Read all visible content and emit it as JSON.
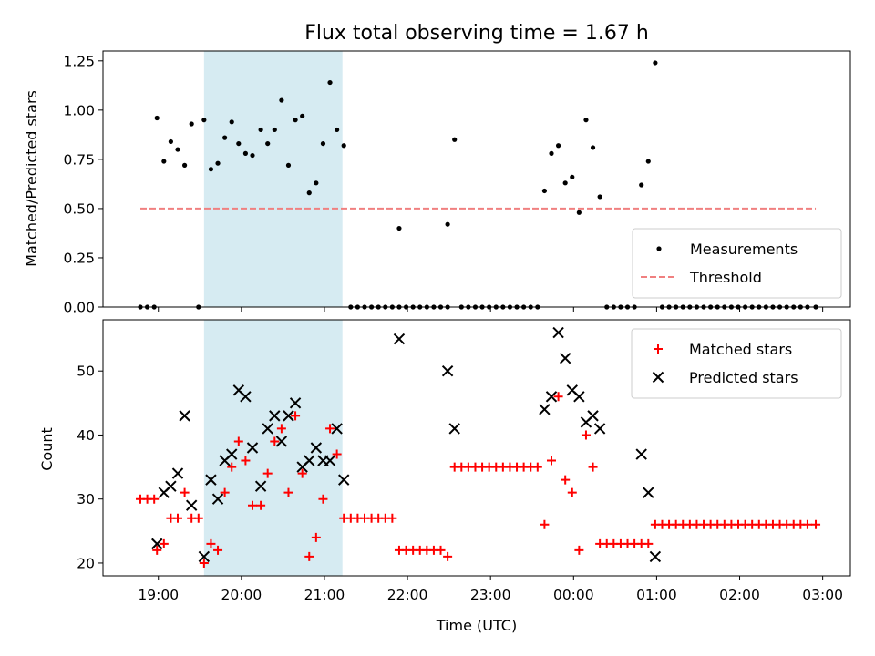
{
  "chart_data": [
    {
      "type": "scatter",
      "title": "Flux total observing time = 1.67 h",
      "ylabel": "Matched/Predicted stars",
      "ylim": [
        0,
        1.3
      ],
      "xlim": [
        "18:20",
        "03:20"
      ],
      "xticks": [
        "19:00",
        "20:00",
        "21:00",
        "22:00",
        "23:00",
        "00:00",
        "01:00",
        "02:00",
        "03:00"
      ],
      "yticks": [
        "0.00",
        "0.25",
        "0.50",
        "0.75",
        "1.00",
        "1.25"
      ],
      "legend_position": "lower-right",
      "shaded_interval": {
        "start": "19:33",
        "end": "21:13",
        "color": "#add8e6"
      },
      "threshold": {
        "name": "Threshold",
        "value": 0.5,
        "x_start": "18:47",
        "x_end": "02:55",
        "color": "#f08080",
        "style": "dashed"
      },
      "series": [
        {
          "name": "Measurements",
          "color": "#000000",
          "marker": "dot",
          "points": [
            [
              "18:47",
              0
            ],
            [
              "18:52",
              0
            ],
            [
              "18:57",
              0
            ],
            [
              "18:59",
              0.96
            ],
            [
              "19:04",
              0.74
            ],
            [
              "19:09",
              0.84
            ],
            [
              "19:14",
              0.8
            ],
            [
              "19:19",
              0.72
            ],
            [
              "19:24",
              0.93
            ],
            [
              "19:29",
              0
            ],
            [
              "19:33",
              0.95
            ],
            [
              "19:38",
              0.7
            ],
            [
              "19:43",
              0.73
            ],
            [
              "19:48",
              0.86
            ],
            [
              "19:53",
              0.94
            ],
            [
              "19:58",
              0.83
            ],
            [
              "20:03",
              0.78
            ],
            [
              "20:08",
              0.77
            ],
            [
              "20:14",
              0.9
            ],
            [
              "20:19",
              0.83
            ],
            [
              "20:24",
              0.9
            ],
            [
              "20:29",
              1.05
            ],
            [
              "20:34",
              0.72
            ],
            [
              "20:39",
              0.95
            ],
            [
              "20:44",
              0.97
            ],
            [
              "20:49",
              0.58
            ],
            [
              "20:54",
              0.63
            ],
            [
              "20:59",
              0.83
            ],
            [
              "21:04",
              1.14
            ],
            [
              "21:09",
              0.9
            ],
            [
              "21:14",
              0.82
            ],
            [
              "21:19",
              0
            ],
            [
              "21:24",
              0
            ],
            [
              "21:29",
              0
            ],
            [
              "21:34",
              0
            ],
            [
              "21:39",
              0
            ],
            [
              "21:44",
              0
            ],
            [
              "21:49",
              0
            ],
            [
              "21:54",
              0
            ],
            [
              "21:54",
              0.4
            ],
            [
              "21:59",
              0
            ],
            [
              "22:04",
              0
            ],
            [
              "22:09",
              0
            ],
            [
              "22:14",
              0
            ],
            [
              "22:19",
              0
            ],
            [
              "22:24",
              0
            ],
            [
              "22:29",
              0
            ],
            [
              "22:29",
              0.42
            ],
            [
              "22:34",
              0.85
            ],
            [
              "22:39",
              0
            ],
            [
              "22:44",
              0
            ],
            [
              "22:49",
              0
            ],
            [
              "22:54",
              0
            ],
            [
              "22:59",
              0
            ],
            [
              "23:04",
              0
            ],
            [
              "23:09",
              0
            ],
            [
              "23:14",
              0
            ],
            [
              "23:19",
              0
            ],
            [
              "23:24",
              0
            ],
            [
              "23:29",
              0
            ],
            [
              "23:34",
              0
            ],
            [
              "23:39",
              0.59
            ],
            [
              "23:44",
              0.78
            ],
            [
              "23:49",
              0.82
            ],
            [
              "23:54",
              0.63
            ],
            [
              "23:59",
              0.66
            ],
            [
              "00:04",
              0.48
            ],
            [
              "00:09",
              0.95
            ],
            [
              "00:14",
              0.81
            ],
            [
              "00:19",
              0.56
            ],
            [
              "00:24",
              0
            ],
            [
              "00:29",
              0
            ],
            [
              "00:34",
              0
            ],
            [
              "00:39",
              0
            ],
            [
              "00:44",
              0
            ],
            [
              "00:49",
              0.62
            ],
            [
              "00:54",
              0.74
            ],
            [
              "00:59",
              1.24
            ],
            [
              "01:04",
              0
            ],
            [
              "01:09",
              0
            ],
            [
              "01:14",
              0
            ],
            [
              "01:19",
              0
            ],
            [
              "01:24",
              0
            ],
            [
              "01:29",
              0
            ],
            [
              "01:34",
              0
            ],
            [
              "01:39",
              0
            ],
            [
              "01:44",
              0
            ],
            [
              "01:49",
              0
            ],
            [
              "01:54",
              0
            ],
            [
              "01:59",
              0
            ],
            [
              "02:04",
              0
            ],
            [
              "02:09",
              0
            ],
            [
              "02:14",
              0
            ],
            [
              "02:19",
              0
            ],
            [
              "02:24",
              0
            ],
            [
              "02:29",
              0
            ],
            [
              "02:34",
              0
            ],
            [
              "02:39",
              0
            ],
            [
              "02:44",
              0
            ],
            [
              "02:49",
              0
            ],
            [
              "02:55",
              0
            ]
          ]
        }
      ]
    },
    {
      "type": "scatter",
      "xlabel": "Time (UTC)",
      "ylabel": "Count",
      "ylim": [
        18,
        58
      ],
      "xlim": [
        "18:20",
        "03:20"
      ],
      "xticks": [
        "19:00",
        "20:00",
        "21:00",
        "22:00",
        "23:00",
        "00:00",
        "01:00",
        "02:00",
        "03:00"
      ],
      "yticks": [
        "20",
        "30",
        "40",
        "50"
      ],
      "legend_position": "top-right",
      "shaded_interval": {
        "start": "19:33",
        "end": "21:13",
        "color": "#add8e6"
      },
      "series": [
        {
          "name": "Matched stars",
          "color": "#ff0000",
          "marker": "plus",
          "points": [
            [
              "18:47",
              30
            ],
            [
              "18:52",
              30
            ],
            [
              "18:57",
              30
            ],
            [
              "18:59",
              22
            ],
            [
              "19:04",
              23
            ],
            [
              "19:09",
              27
            ],
            [
              "19:14",
              27
            ],
            [
              "19:19",
              31
            ],
            [
              "19:24",
              27
            ],
            [
              "19:29",
              27
            ],
            [
              "19:33",
              20
            ],
            [
              "19:38",
              23
            ],
            [
              "19:43",
              22
            ],
            [
              "19:48",
              31
            ],
            [
              "19:53",
              35
            ],
            [
              "19:58",
              39
            ],
            [
              "20:03",
              36
            ],
            [
              "20:08",
              29
            ],
            [
              "20:14",
              29
            ],
            [
              "20:19",
              34
            ],
            [
              "20:24",
              39
            ],
            [
              "20:29",
              41
            ],
            [
              "20:34",
              31
            ],
            [
              "20:39",
              43
            ],
            [
              "20:44",
              34
            ],
            [
              "20:49",
              21
            ],
            [
              "20:54",
              24
            ],
            [
              "20:59",
              30
            ],
            [
              "21:04",
              41
            ],
            [
              "21:09",
              37
            ],
            [
              "21:14",
              27
            ],
            [
              "21:19",
              27
            ],
            [
              "21:24",
              27
            ],
            [
              "21:29",
              27
            ],
            [
              "21:34",
              27
            ],
            [
              "21:39",
              27
            ],
            [
              "21:44",
              27
            ],
            [
              "21:49",
              27
            ],
            [
              "21:54",
              22
            ],
            [
              "21:59",
              22
            ],
            [
              "22:04",
              22
            ],
            [
              "22:09",
              22
            ],
            [
              "22:14",
              22
            ],
            [
              "22:19",
              22
            ],
            [
              "22:24",
              22
            ],
            [
              "22:29",
              21
            ],
            [
              "22:34",
              35
            ],
            [
              "22:39",
              35
            ],
            [
              "22:44",
              35
            ],
            [
              "22:49",
              35
            ],
            [
              "22:54",
              35
            ],
            [
              "22:59",
              35
            ],
            [
              "23:04",
              35
            ],
            [
              "23:09",
              35
            ],
            [
              "23:14",
              35
            ],
            [
              "23:19",
              35
            ],
            [
              "23:24",
              35
            ],
            [
              "23:29",
              35
            ],
            [
              "23:34",
              35
            ],
            [
              "23:39",
              26
            ],
            [
              "23:44",
              36
            ],
            [
              "23:49",
              46
            ],
            [
              "23:54",
              33
            ],
            [
              "23:59",
              31
            ],
            [
              "00:04",
              22
            ],
            [
              "00:09",
              40
            ],
            [
              "00:14",
              35
            ],
            [
              "00:19",
              23
            ],
            [
              "00:24",
              23
            ],
            [
              "00:29",
              23
            ],
            [
              "00:34",
              23
            ],
            [
              "00:39",
              23
            ],
            [
              "00:44",
              23
            ],
            [
              "00:49",
              23
            ],
            [
              "00:54",
              23
            ],
            [
              "00:59",
              26
            ],
            [
              "01:04",
              26
            ],
            [
              "01:09",
              26
            ],
            [
              "01:14",
              26
            ],
            [
              "01:19",
              26
            ],
            [
              "01:24",
              26
            ],
            [
              "01:29",
              26
            ],
            [
              "01:34",
              26
            ],
            [
              "01:39",
              26
            ],
            [
              "01:44",
              26
            ],
            [
              "01:49",
              26
            ],
            [
              "01:54",
              26
            ],
            [
              "01:59",
              26
            ],
            [
              "02:04",
              26
            ],
            [
              "02:09",
              26
            ],
            [
              "02:14",
              26
            ],
            [
              "02:19",
              26
            ],
            [
              "02:24",
              26
            ],
            [
              "02:29",
              26
            ],
            [
              "02:34",
              26
            ],
            [
              "02:39",
              26
            ],
            [
              "02:44",
              26
            ],
            [
              "02:49",
              26
            ],
            [
              "02:55",
              26
            ]
          ]
        },
        {
          "name": "Predicted stars",
          "color": "#000000",
          "marker": "x",
          "points": [
            [
              "18:59",
              23
            ],
            [
              "19:04",
              31
            ],
            [
              "19:09",
              32
            ],
            [
              "19:14",
              34
            ],
            [
              "19:19",
              43
            ],
            [
              "19:24",
              29
            ],
            [
              "19:33",
              21
            ],
            [
              "19:38",
              33
            ],
            [
              "19:43",
              30
            ],
            [
              "19:48",
              36
            ],
            [
              "19:53",
              37
            ],
            [
              "19:58",
              47
            ],
            [
              "20:03",
              46
            ],
            [
              "20:08",
              38
            ],
            [
              "20:14",
              32
            ],
            [
              "20:19",
              41
            ],
            [
              "20:24",
              43
            ],
            [
              "20:29",
              39
            ],
            [
              "20:34",
              43
            ],
            [
              "20:39",
              45
            ],
            [
              "20:44",
              35
            ],
            [
              "20:49",
              36
            ],
            [
              "20:54",
              38
            ],
            [
              "20:59",
              36
            ],
            [
              "21:04",
              36
            ],
            [
              "21:09",
              41
            ],
            [
              "21:14",
              33
            ],
            [
              "21:54",
              55
            ],
            [
              "22:29",
              50
            ],
            [
              "22:34",
              41
            ],
            [
              "23:39",
              44
            ],
            [
              "23:44",
              46
            ],
            [
              "23:49",
              56
            ],
            [
              "23:54",
              52
            ],
            [
              "23:59",
              47
            ],
            [
              "00:04",
              46
            ],
            [
              "00:09",
              42
            ],
            [
              "00:14",
              43
            ],
            [
              "00:19",
              41
            ],
            [
              "00:49",
              37
            ],
            [
              "00:54",
              31
            ],
            [
              "00:59",
              21
            ]
          ]
        }
      ]
    }
  ]
}
